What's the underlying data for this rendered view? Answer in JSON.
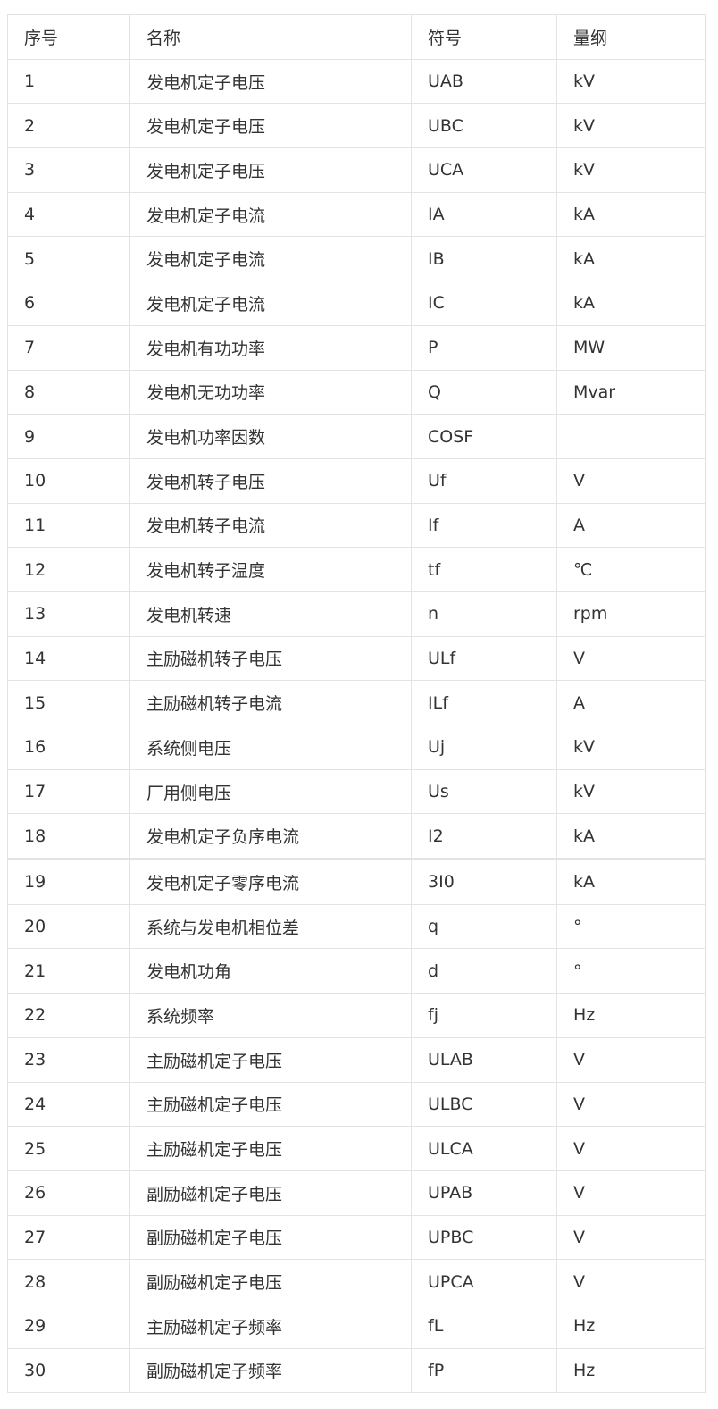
{
  "table": {
    "headers": [
      "序号",
      "名称",
      "符号",
      "量纲"
    ],
    "rows": [
      [
        "1",
        "发电机定子电压",
        "UAB",
        "kV"
      ],
      [
        "2",
        "发电机定子电压",
        "UBC",
        "kV"
      ],
      [
        "3",
        "发电机定子电压",
        "UCA",
        "kV"
      ],
      [
        "4",
        "发电机定子电流",
        "IA",
        "kA"
      ],
      [
        "5",
        "发电机定子电流",
        "IB",
        "kA"
      ],
      [
        "6",
        "发电机定子电流",
        "IC",
        "kA"
      ],
      [
        "7",
        "发电机有功功率",
        "P",
        "MW"
      ],
      [
        "8",
        "发电机无功功率",
        "Q",
        "Mvar"
      ],
      [
        "9",
        "发电机功率因数",
        "COSF",
        ""
      ],
      [
        "10",
        "发电机转子电压",
        "Uf",
        "V"
      ],
      [
        "11",
        "发电机转子电流",
        "If",
        "A"
      ],
      [
        "12",
        "发电机转子温度",
        "tf",
        "℃"
      ],
      [
        "13",
        "发电机转速",
        "n",
        "rpm"
      ],
      [
        "14",
        "主励磁机转子电压",
        "ULf",
        "V"
      ],
      [
        "15",
        "主励磁机转子电流",
        "ILf",
        "A"
      ],
      [
        "16",
        "系统侧电压",
        "Uj",
        "kV"
      ],
      [
        "17",
        "厂用侧电压",
        "Us",
        "kV"
      ],
      [
        "18",
        "发电机定子负序电流",
        "I2",
        "kA"
      ],
      [
        "19",
        "发电机定子零序电流",
        "3I0",
        "kA"
      ],
      [
        "20",
        "系统与发电机相位差",
        "q",
        "°"
      ],
      [
        "21",
        "发电机功角",
        "d",
        "°"
      ],
      [
        "22",
        "系统频率",
        "fj",
        "Hz"
      ],
      [
        "23",
        "主励磁机定子电压",
        "ULAB",
        "V"
      ],
      [
        "24",
        "主励磁机定子电压",
        "ULBC",
        "V"
      ],
      [
        "25",
        "主励磁机定子电压",
        "ULCA",
        "V"
      ],
      [
        "26",
        "副励磁机定子电压",
        "UPAB",
        "V"
      ],
      [
        "27",
        "副励磁机定子电压",
        "UPBC",
        "V"
      ],
      [
        "28",
        "副励磁机定子电压",
        "UPCA",
        "V"
      ],
      [
        "29",
        "主励磁机定子频率",
        "fL",
        "Hz"
      ],
      [
        "30",
        "副励磁机定子频率",
        "fP",
        "Hz"
      ]
    ]
  }
}
